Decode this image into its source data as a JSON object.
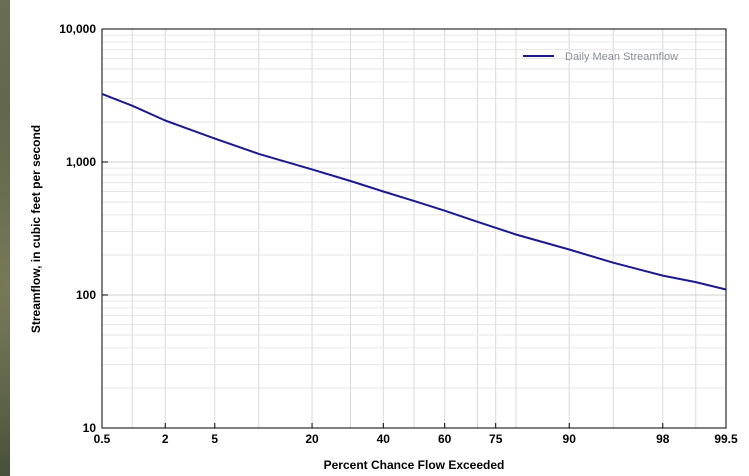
{
  "chart_data": {
    "type": "line",
    "xlabel": "Percent Chance Flow Exceeded",
    "ylabel": "Streamflow, in cubic feet per second",
    "x_scale": "normal-probability",
    "y_scale": "log",
    "ylim": [
      10,
      10000
    ],
    "xlim": [
      0.5,
      99.5
    ],
    "x_ticks": [
      "0.5",
      "2",
      "5",
      "20",
      "40",
      "60",
      "75",
      "90",
      "98",
      "99.5"
    ],
    "y_ticks": [
      "10",
      "100",
      "1,000",
      "10,000"
    ],
    "grid": true,
    "legend_position": "top-right",
    "series": [
      {
        "name": "Daily Mean Streamflow",
        "color": "#1a1a8c",
        "x": [
          0.5,
          1,
          2,
          5,
          10,
          20,
          30,
          40,
          50,
          60,
          70,
          75,
          80,
          90,
          95,
          98,
          99,
          99.5
        ],
        "values": [
          3250,
          2650,
          2050,
          1500,
          1150,
          880,
          720,
          600,
          510,
          430,
          355,
          320,
          285,
          220,
          175,
          140,
          125,
          110
        ]
      }
    ]
  }
}
